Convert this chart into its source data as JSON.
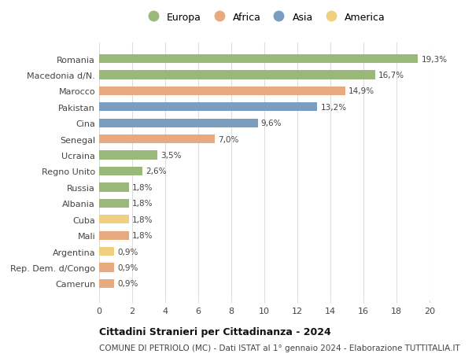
{
  "categories": [
    "Romania",
    "Macedonia d/N.",
    "Marocco",
    "Pakistan",
    "Cina",
    "Senegal",
    "Ucraina",
    "Regno Unito",
    "Russia",
    "Albania",
    "Cuba",
    "Mali",
    "Argentina",
    "Rep. Dem. d/Congo",
    "Camerun"
  ],
  "values": [
    19.3,
    16.7,
    14.9,
    13.2,
    9.6,
    7.0,
    3.5,
    2.6,
    1.8,
    1.8,
    1.8,
    1.8,
    0.9,
    0.9,
    0.9
  ],
  "labels": [
    "19,3%",
    "16,7%",
    "14,9%",
    "13,2%",
    "9,6%",
    "7,0%",
    "3,5%",
    "2,6%",
    "1,8%",
    "1,8%",
    "1,8%",
    "1,8%",
    "0,9%",
    "0,9%",
    "0,9%"
  ],
  "continents": [
    "Europa",
    "Europa",
    "Africa",
    "Asia",
    "Asia",
    "Africa",
    "Europa",
    "Europa",
    "Europa",
    "Europa",
    "America",
    "Africa",
    "America",
    "Africa",
    "Africa"
  ],
  "colors": {
    "Europa": "#9ab87a",
    "Africa": "#e8a97e",
    "Asia": "#7b9dbf",
    "America": "#f0d080"
  },
  "legend_order": [
    "Europa",
    "Africa",
    "Asia",
    "America"
  ],
  "title": "Cittadini Stranieri per Cittadinanza - 2024",
  "subtitle": "COMUNE DI PETRIOLO (MC) - Dati ISTAT al 1° gennaio 2024 - Elaborazione TUTTITALIA.IT",
  "xlim": [
    0,
    20
  ],
  "xticks": [
    0,
    2,
    4,
    6,
    8,
    10,
    12,
    14,
    16,
    18,
    20
  ],
  "background_color": "#ffffff",
  "grid_color": "#dddddd",
  "label_fontsize": 7.5,
  "ytick_fontsize": 8,
  "xtick_fontsize": 8,
  "bar_height": 0.55,
  "title_fontsize": 9,
  "subtitle_fontsize": 7.5
}
